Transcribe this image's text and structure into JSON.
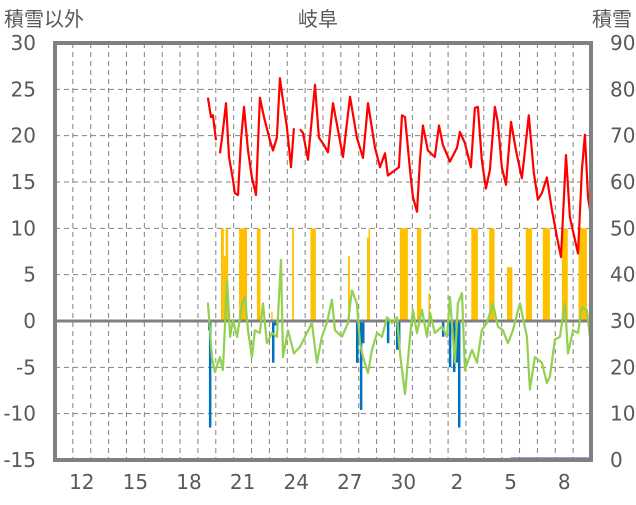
{
  "chart_data": {
    "type": "line",
    "title": "岐阜",
    "ylabel_left": "積雪以外",
    "ylabel_right": "積雪",
    "ylim_left": [
      -15,
      30
    ],
    "yticks_left": [
      30,
      25,
      20,
      15,
      10,
      5,
      0,
      -5,
      -10,
      -15
    ],
    "ylim_right": [
      0,
      90
    ],
    "yticks_right": [
      90,
      80,
      70,
      60,
      50,
      40,
      30,
      20,
      10,
      0
    ],
    "xlim_days": [
      0,
      30
    ],
    "x_unit": "days from start of first day shown (day 11)",
    "xticks": [
      {
        "label": "12",
        "day": 1.5
      },
      {
        "label": "15",
        "day": 4.5
      },
      {
        "label": "18",
        "day": 7.5
      },
      {
        "label": "21",
        "day": 10.5
      },
      {
        "label": "24",
        "day": 13.5
      },
      {
        "label": "27",
        "day": 16.5
      },
      {
        "label": "30",
        "day": 19.5
      },
      {
        "label": "2",
        "day": 22.5
      },
      {
        "label": "5",
        "day": 25.5
      },
      {
        "label": "8",
        "day": 28.5
      }
    ],
    "grid": true,
    "colors": {
      "temperature": "#ff0000",
      "precip": "#ffc000",
      "green": "#92d050",
      "blue": "#0070c0",
      "snow": "#7030a0",
      "axis": "#808080"
    },
    "series": [
      {
        "name": "temperature",
        "axis": "left",
        "points": [
          [
            8.56,
            24.1
          ],
          [
            8.73,
            22.0
          ],
          [
            8.84,
            22.2
          ],
          [
            9.01,
            19.5
          ],
          null,
          [
            9.23,
            18.1
          ],
          [
            9.35,
            19.8
          ],
          [
            9.57,
            23.5
          ],
          [
            9.74,
            17.7
          ],
          [
            9.96,
            15.2
          ],
          [
            10.07,
            13.8
          ],
          [
            10.24,
            13.6
          ],
          [
            10.41,
            19.5
          ],
          [
            10.58,
            23.1
          ],
          [
            10.8,
            18.4
          ],
          [
            11.02,
            15.5
          ],
          [
            11.25,
            13.6
          ],
          [
            11.47,
            24.1
          ],
          [
            11.7,
            22.0
          ],
          [
            12.03,
            19.5
          ],
          [
            12.2,
            18.4
          ],
          [
            12.42,
            19.8
          ],
          [
            12.59,
            26.2
          ],
          [
            12.76,
            23.8
          ],
          [
            12.98,
            20.9
          ],
          [
            13.21,
            16.6
          ],
          [
            13.37,
            20.8
          ],
          null,
          [
            13.71,
            20.7
          ],
          [
            13.88,
            20.3
          ],
          [
            14.16,
            17.4
          ],
          [
            14.55,
            25.5
          ],
          [
            14.77,
            19.8
          ],
          [
            15.05,
            19.0
          ],
          [
            15.28,
            18.2
          ],
          [
            15.45,
            21.5
          ],
          [
            15.56,
            23.5
          ],
          [
            15.84,
            20.6
          ],
          [
            16.12,
            17.7
          ],
          [
            16.51,
            24.2
          ],
          [
            16.9,
            19.8
          ],
          [
            17.24,
            17.6
          ],
          [
            17.52,
            23.5
          ],
          [
            17.91,
            18.7
          ],
          [
            18.19,
            16.6
          ],
          [
            18.47,
            18.1
          ],
          [
            18.63,
            15.7
          ],
          [
            19.25,
            16.6
          ],
          [
            19.42,
            22.2
          ],
          [
            19.59,
            22.0
          ],
          [
            19.87,
            16.3
          ],
          [
            20.03,
            13.4
          ],
          [
            20.26,
            11.8
          ],
          [
            20.43,
            17.4
          ],
          [
            20.59,
            21.1
          ],
          [
            20.87,
            18.4
          ],
          [
            21.26,
            17.7
          ],
          [
            21.49,
            21.1
          ],
          [
            21.71,
            19.0
          ],
          [
            22.1,
            17.2
          ],
          [
            22.5,
            18.7
          ],
          [
            22.66,
            20.4
          ],
          [
            22.94,
            19.2
          ],
          [
            23.28,
            16.6
          ],
          [
            23.5,
            23.0
          ],
          [
            23.67,
            23.1
          ],
          [
            23.89,
            17.4
          ],
          [
            24.12,
            14.3
          ],
          [
            24.34,
            16.3
          ],
          [
            24.62,
            23.1
          ],
          [
            24.79,
            21.4
          ],
          [
            25.01,
            16.6
          ],
          [
            25.24,
            14.7
          ],
          [
            25.52,
            21.5
          ],
          [
            25.8,
            18.4
          ],
          [
            26.13,
            15.4
          ],
          [
            26.52,
            22.2
          ],
          [
            26.8,
            16.0
          ],
          [
            27.03,
            13.1
          ],
          [
            27.25,
            13.8
          ],
          [
            27.53,
            15.5
          ],
          [
            27.81,
            12.0
          ],
          [
            28.09,
            9.1
          ],
          [
            28.32,
            6.9
          ],
          [
            28.6,
            17.9
          ],
          [
            28.82,
            11.2
          ],
          [
            29.27,
            7.3
          ],
          [
            29.49,
            16.3
          ],
          [
            29.66,
            20.1
          ],
          [
            29.83,
            13.4
          ],
          [
            30.0,
            11.2
          ]
        ]
      },
      {
        "name": "green",
        "axis": "left",
        "points": [
          [
            8.56,
            2.0
          ],
          [
            8.78,
            -3.9
          ],
          [
            8.95,
            -5.5
          ],
          [
            9.23,
            -3.9
          ],
          [
            9.4,
            -5.3
          ],
          [
            9.63,
            4.4
          ],
          [
            9.8,
            -1.7
          ],
          [
            9.96,
            0.1
          ],
          [
            10.19,
            -1.7
          ],
          [
            10.47,
            1.9
          ],
          [
            10.63,
            2.6
          ],
          [
            10.8,
            -1.0
          ],
          [
            11.02,
            -3.9
          ],
          [
            11.19,
            -1.0
          ],
          [
            11.47,
            -1.3
          ],
          [
            11.64,
            1.9
          ],
          [
            11.86,
            -2.4
          ],
          [
            12.14,
            -1.3
          ],
          [
            12.42,
            -1.7
          ],
          [
            12.65,
            6.6
          ],
          [
            12.76,
            -3.9
          ],
          [
            13.04,
            -1.0
          ],
          [
            13.37,
            -3.5
          ],
          [
            13.71,
            -2.8
          ],
          [
            14.1,
            -1.3
          ],
          [
            14.38,
            -0.2
          ],
          [
            14.66,
            -4.5
          ],
          [
            14.94,
            -1.7
          ],
          [
            15.22,
            -0.2
          ],
          [
            15.5,
            2.3
          ],
          [
            15.67,
            -1.0
          ],
          [
            16.06,
            -1.7
          ],
          [
            16.4,
            -0.2
          ],
          [
            16.62,
            3.3
          ],
          [
            16.9,
            1.9
          ],
          [
            17.07,
            -2.4
          ],
          [
            17.24,
            -3.9
          ],
          [
            17.52,
            -5.6
          ],
          [
            17.74,
            -3.1
          ],
          [
            18.02,
            -1.3
          ],
          [
            18.3,
            -1.7
          ],
          [
            18.58,
            0.4
          ],
          [
            18.86,
            -0.2
          ],
          [
            19.14,
            0.4
          ],
          [
            19.31,
            -3.5
          ],
          [
            19.59,
            -7.9
          ],
          [
            19.87,
            -1.7
          ],
          [
            20.03,
            1.2
          ],
          [
            20.26,
            -1.3
          ],
          [
            20.54,
            1.2
          ],
          [
            20.82,
            -1.7
          ],
          [
            20.99,
            0.9
          ],
          [
            21.26,
            -1.3
          ],
          [
            21.66,
            -0.6
          ],
          [
            21.94,
            -1.7
          ],
          [
            22.1,
            2.6
          ],
          [
            22.38,
            -4.5
          ],
          [
            22.55,
            1.9
          ],
          [
            22.78,
            3.0
          ],
          [
            22.94,
            -5.3
          ],
          [
            23.34,
            -3.1
          ],
          [
            23.62,
            -4.5
          ],
          [
            23.89,
            -1.0
          ],
          [
            24.17,
            -0.2
          ],
          [
            24.51,
            1.9
          ],
          [
            24.79,
            -0.6
          ],
          [
            25.07,
            -1.0
          ],
          [
            25.35,
            -2.4
          ],
          [
            25.63,
            -1.0
          ],
          [
            26.02,
            1.9
          ],
          [
            26.41,
            -1.7
          ],
          [
            26.58,
            -7.4
          ],
          [
            26.86,
            -3.9
          ],
          [
            27.25,
            -4.5
          ],
          [
            27.53,
            -6.7
          ],
          [
            27.7,
            -6.0
          ],
          [
            27.98,
            -2.0
          ],
          [
            28.26,
            -1.7
          ],
          [
            28.54,
            1.9
          ],
          [
            28.71,
            -3.5
          ],
          [
            28.99,
            -1.0
          ],
          [
            29.27,
            -1.3
          ],
          [
            29.49,
            1.5
          ],
          [
            29.77,
            1.2
          ],
          [
            29.94,
            -1.7
          ]
        ]
      },
      {
        "name": "precip",
        "axis": "left",
        "type": "bar",
        "blocks": [
          [
            9.29,
            9.45,
            10
          ],
          [
            9.45,
            9.55,
            7
          ],
          [
            9.55,
            9.69,
            10
          ],
          [
            10.3,
            10.75,
            10
          ],
          [
            11.3,
            11.5,
            10
          ],
          [
            12.1,
            12.15,
            1
          ],
          [
            13.27,
            13.37,
            10
          ],
          [
            14.3,
            14.6,
            10
          ],
          [
            16.4,
            16.5,
            7.0
          ],
          [
            17.46,
            17.55,
            9.0
          ],
          [
            17.55,
            17.63,
            10
          ],
          [
            19.3,
            19.75,
            10
          ],
          [
            20.26,
            20.5,
            10
          ],
          [
            20.9,
            20.95,
            3
          ],
          [
            23.3,
            23.67,
            10
          ],
          [
            24.3,
            24.6,
            10
          ],
          [
            25.3,
            25.6,
            5.8
          ],
          [
            26.35,
            26.7,
            10
          ],
          [
            27.3,
            27.7,
            10
          ],
          [
            28.37,
            28.7,
            10
          ],
          [
            29.3,
            29.77,
            10
          ]
        ]
      },
      {
        "name": "blue",
        "axis": "left",
        "type": "bar",
        "bars": [
          [
            8.62,
            -1.0
          ],
          [
            8.67,
            -11.5
          ],
          [
            12.2,
            -4.5
          ],
          [
            12.3,
            -0.5
          ],
          [
            16.9,
            -4.5
          ],
          [
            17.12,
            -9.6
          ],
          [
            17.24,
            -2.4
          ],
          [
            18.63,
            -2.4
          ],
          [
            19.14,
            -3.1
          ],
          [
            19.25,
            -2.9
          ],
          [
            21.71,
            -1.7
          ],
          [
            22.1,
            -5.0
          ],
          [
            22.33,
            -5.5
          ],
          [
            22.5,
            -4.5
          ],
          [
            22.55,
            -1.7
          ],
          [
            22.61,
            -11.5
          ]
        ]
      },
      {
        "name": "snow",
        "axis": "right",
        "points": [
          [
            25.5,
            0
          ],
          [
            30.0,
            0
          ]
        ]
      }
    ]
  }
}
